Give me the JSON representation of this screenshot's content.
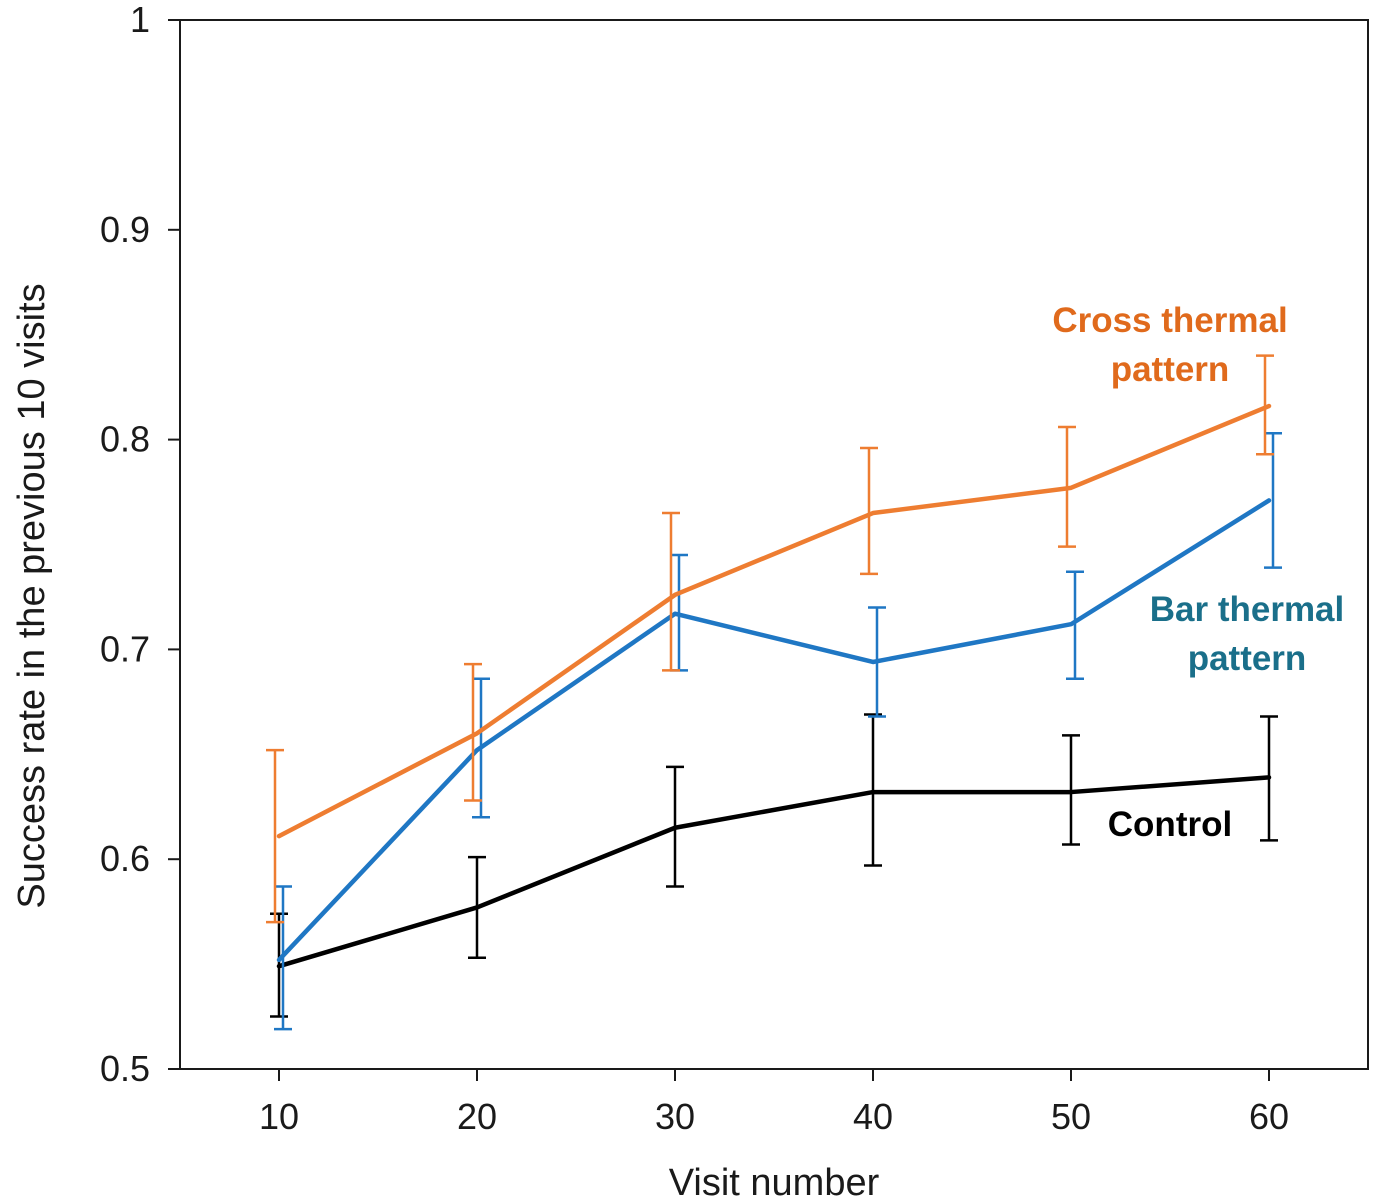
{
  "chart_data": {
    "type": "line",
    "xlabel": "Visit number",
    "ylabel": "Success rate in the previous  10 visits",
    "x": [
      10,
      20,
      30,
      40,
      50,
      60
    ],
    "xlim": [
      5,
      65
    ],
    "ylim": [
      0.5,
      1.0
    ],
    "x_ticks": [
      "10",
      "20",
      "30",
      "40",
      "50",
      "60"
    ],
    "y_ticks": [
      "0.5",
      "0.6",
      "0.7",
      "0.8",
      "0.9",
      "1"
    ],
    "y_tick_values": [
      0.5,
      0.6,
      0.7,
      0.8,
      0.9,
      1.0
    ],
    "grid": false,
    "series": [
      {
        "name": "Control",
        "color": "#000000",
        "values": [
          0.549,
          0.577,
          0.615,
          0.632,
          0.632,
          0.639
        ],
        "error_low": [
          0.525,
          0.553,
          0.587,
          0.597,
          0.607,
          0.609
        ],
        "error_high": [
          0.574,
          0.601,
          0.644,
          0.669,
          0.659,
          0.668
        ]
      },
      {
        "name": "Bar thermal pattern",
        "color": "#1f77c4",
        "values": [
          0.552,
          0.652,
          0.717,
          0.694,
          0.712,
          0.771
        ],
        "error_low": [
          0.519,
          0.62,
          0.69,
          0.668,
          0.686,
          0.739
        ],
        "error_high": [
          0.587,
          0.686,
          0.745,
          0.72,
          0.737,
          0.803
        ]
      },
      {
        "name": "Cross thermal pattern",
        "color": "#ee7d31",
        "values": [
          0.611,
          0.66,
          0.726,
          0.765,
          0.777,
          0.816
        ],
        "error_low": [
          0.57,
          0.628,
          0.69,
          0.736,
          0.749,
          0.793
        ],
        "error_high": [
          0.652,
          0.693,
          0.765,
          0.796,
          0.806,
          0.84
        ]
      }
    ],
    "annotations": {
      "cross_line1": "Cross thermal",
      "cross_line2": "pattern",
      "bar_line1": "Bar thermal",
      "bar_line2": "pattern",
      "control": "Control"
    },
    "annotation_colors": {
      "cross": "#e06a1c",
      "bar": "#1a6f8a",
      "control": "#000000"
    }
  }
}
